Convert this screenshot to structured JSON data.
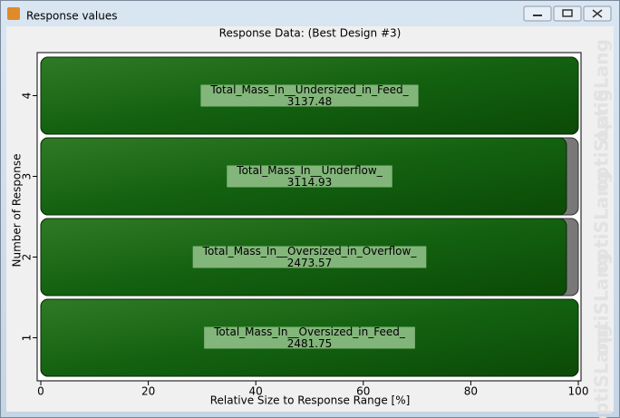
{
  "window": {
    "title": "Response values"
  },
  "chart_data": {
    "type": "hbar",
    "title": "Response Data: (Best Design #3)",
    "xlabel": "Relative Size to Response Range [%]",
    "ylabel": "Number of Response",
    "categories": [
      "1",
      "2",
      "3",
      "4"
    ],
    "values": [
      100,
      97.8,
      97.8,
      100
    ],
    "response_names": [
      "Total_Mass_In__Oversized_in_Feed_",
      "Total_Mass_In__Oversized_in_Overflow_",
      "Total_Mass_In__Underflow_",
      "Total_Mass_In__Undersized_in_Feed_"
    ],
    "response_values": [
      2481.75,
      2473.57,
      3114.93,
      3137.48
    ],
    "color": "#1d6b12",
    "xlim": [
      0,
      100
    ],
    "xticks": [
      0,
      20,
      40,
      60,
      80,
      100
    ],
    "watermark": "optiSLang"
  }
}
